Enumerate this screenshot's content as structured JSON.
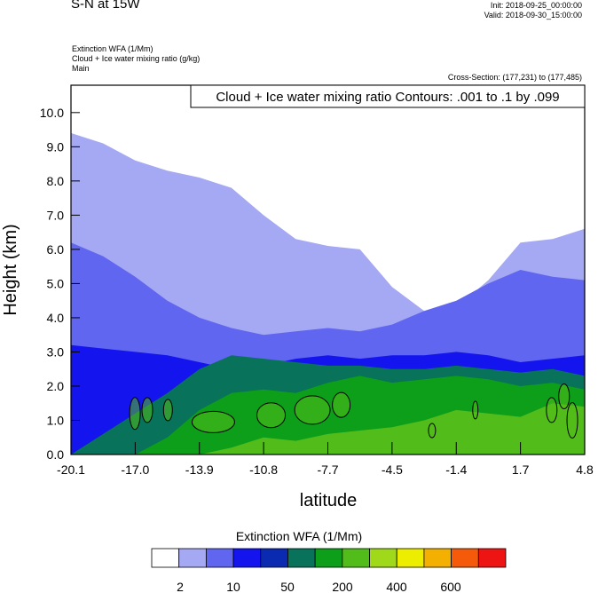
{
  "header": {
    "title": "S-N at 15W",
    "init": "Init: 2018-09-25_00:00:00",
    "valid": "Valid: 2018-09-30_15:00:00",
    "field1": "Extinction WFA   (1/Mm)",
    "field2": "Cloud + Ice water mixing ratio   (g/kg)",
    "field3": "Main",
    "cross_section": "Cross-Section: (177,231) to (177,485)"
  },
  "chart_data": {
    "type": "heatmap",
    "title": "S-N at 15W",
    "xlabel": "latitude",
    "ylabel": "Height (km)",
    "xlim": [
      -20.1,
      4.8
    ],
    "ylim": [
      0.0,
      10.8
    ],
    "x_ticks": [
      "-20.1",
      "-17.0",
      "-13.9",
      "-10.8",
      "-7.7",
      "-4.5",
      "-1.4",
      "1.7",
      "4.8"
    ],
    "y_ticks": [
      "0.0",
      "1.0",
      "2.0",
      "3.0",
      "4.0",
      "5.0",
      "6.0",
      "7.0",
      "8.0",
      "9.0",
      "10.0"
    ],
    "contour_label": "Cloud + Ice water mixing ratio Contours: .001 to .1 by .099",
    "colorbar": {
      "title": "Extinction WFA  (1/Mm)",
      "colors": [
        "#ffffff",
        "#a5a9f4",
        "#6066ef",
        "#1414ee",
        "#0b2ab2",
        "#08725a",
        "#0d9e1a",
        "#52bd1a",
        "#a0d81a",
        "#eded00",
        "#f4b000",
        "#f45a0a",
        "#ee1414"
      ],
      "labels": [
        "2",
        "10",
        "50",
        "200",
        "400",
        "600"
      ]
    },
    "regions": [
      {
        "level": 1,
        "desc": "light extinction layer",
        "upper_km": [
          9.4,
          9.1,
          8.6,
          8.3,
          8.1,
          7.8,
          7.0,
          6.3,
          6.1,
          6.0,
          4.9,
          4.2,
          4.3,
          5.1,
          6.2,
          6.3,
          6.6
        ]
      },
      {
        "level": 2,
        "desc": "moderate layer",
        "upper_km": [
          6.2,
          5.8,
          5.2,
          4.5,
          4.0,
          3.7,
          3.5,
          3.6,
          3.7,
          3.6,
          3.8,
          4.2,
          4.5,
          5.0,
          5.4,
          5.2,
          5.1
        ]
      },
      {
        "level": 3,
        "desc": "blue layer",
        "upper_km": [
          3.2,
          3.1,
          3.0,
          2.9,
          2.7,
          2.5,
          2.6,
          2.8,
          2.9,
          2.8,
          2.9,
          2.9,
          3.0,
          2.9,
          2.7,
          2.8,
          2.9
        ]
      },
      {
        "level": 5,
        "desc": "teal layer",
        "upper_km": [
          0.0,
          0.6,
          1.2,
          1.8,
          2.5,
          2.9,
          2.8,
          2.7,
          2.6,
          2.6,
          2.5,
          2.5,
          2.6,
          2.5,
          2.4,
          2.5,
          2.3
        ]
      },
      {
        "level": 6,
        "desc": "green layer",
        "upper_km": [
          0.0,
          0.0,
          0.0,
          0.5,
          1.3,
          1.8,
          1.9,
          1.8,
          2.1,
          2.3,
          2.1,
          2.2,
          2.3,
          2.2,
          2.0,
          2.1,
          1.9
        ]
      },
      {
        "level": 7,
        "desc": "light green layer",
        "upper_km": [
          0.0,
          0.0,
          0.0,
          0.0,
          0.0,
          0.2,
          0.5,
          0.4,
          0.6,
          0.7,
          0.8,
          1.0,
          1.3,
          1.2,
          1.1,
          1.5,
          1.4
        ]
      }
    ]
  }
}
